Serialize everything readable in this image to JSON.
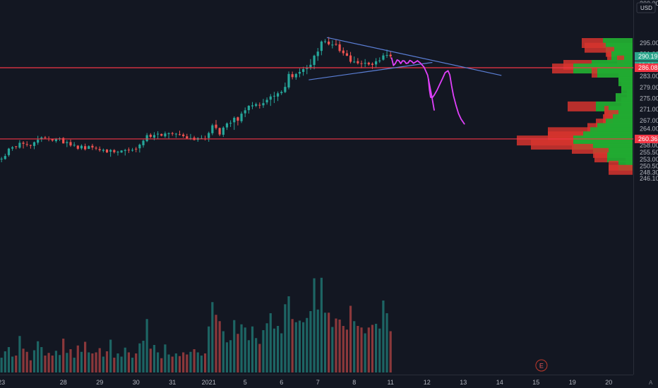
{
  "chart_data": {
    "type": "candlestick",
    "currency": "USD",
    "price_axis_ticks": [
      "295.00",
      "291.00",
      "287.00",
      "283.00",
      "279.00",
      "275.00",
      "271.00",
      "267.00",
      "264.00",
      "261.00",
      "258.00",
      "255.50",
      "253.00",
      "250.50",
      "248.30",
      "246.10"
    ],
    "price_axis_top_partial": "300.00",
    "date_axis_ticks": [
      {
        "label": "23",
        "bar": 1
      },
      {
        "label": "28",
        "bar": 18
      },
      {
        "label": "29",
        "bar": 28
      },
      {
        "label": "30",
        "bar": 38
      },
      {
        "label": "31",
        "bar": 48
      },
      {
        "label": "2021",
        "bar": 58
      },
      {
        "label": "5",
        "bar": 68
      },
      {
        "label": "6",
        "bar": 78
      },
      {
        "label": "7",
        "bar": 88
      },
      {
        "label": "8",
        "bar": 98
      },
      {
        "label": "11",
        "bar": 108
      },
      {
        "label": "12",
        "bar": 118
      },
      {
        "label": "13",
        "bar": 128
      },
      {
        "label": "14",
        "bar": 138
      },
      {
        "label": "15",
        "bar": 148
      },
      {
        "label": "19",
        "bar": 158
      },
      {
        "label": "20",
        "bar": 168
      }
    ],
    "price_labels": {
      "last_price": "290.19",
      "countdown": "08:06",
      "red_level_upper": "286.08",
      "red_level_lower": "260.36"
    },
    "horizontal_levels": [
      {
        "price": 286.08,
        "color": "#f23645"
      },
      {
        "price": 260.36,
        "color": "#f23645"
      }
    ],
    "trendlines": [
      {
        "from": {
          "bar": 90.5,
          "price": 297.0
        },
        "to": {
          "bar": 138.5,
          "price": 283.3
        },
        "color": "#5b7fd6"
      },
      {
        "from": {
          "bar": 85.5,
          "price": 281.7
        },
        "to": {
          "bar": 119.5,
          "price": 288.0
        },
        "color": "#5b7fd6"
      }
    ],
    "drawings": [
      {
        "color": "#e040fb",
        "points": [
          [
            108.3,
            289.6
          ],
          [
            108.8,
            286.9
          ],
          [
            109.3,
            287.6
          ],
          [
            109.8,
            288.9
          ],
          [
            110.3,
            288.6
          ],
          [
            110.8,
            287.6
          ],
          [
            111.3,
            288.6
          ],
          [
            111.8,
            288.5
          ],
          [
            112.3,
            287.6
          ],
          [
            112.8,
            287.8
          ],
          [
            113.3,
            288.7
          ],
          [
            113.8,
            288.4
          ],
          [
            114.3,
            287.7
          ],
          [
            114.8,
            288.1
          ],
          [
            115.4,
            288.6
          ],
          [
            116.2,
            287.8
          ],
          [
            117.2,
            286.3
          ],
          [
            118.2,
            283.4
          ],
          [
            119.3,
            276.0
          ],
          [
            120.0,
            270.8
          ]
        ]
      },
      {
        "color": "#e040fb",
        "points": [
          [
            118.4,
            282.0
          ],
          [
            118.7,
            278.0
          ],
          [
            119.0,
            275.4
          ],
          [
            119.5,
            275.3
          ],
          [
            120.0,
            276.2
          ],
          [
            120.8,
            278.0
          ],
          [
            121.5,
            280.0
          ],
          [
            122.3,
            282.2
          ],
          [
            123.0,
            284.3
          ],
          [
            123.8,
            285.0
          ],
          [
            124.3,
            283.5
          ],
          [
            124.8,
            279.5
          ],
          [
            125.3,
            276.0
          ],
          [
            126.0,
            272.5
          ],
          [
            126.7,
            269.5
          ],
          [
            127.4,
            267.5
          ],
          [
            128.3,
            265.8
          ]
        ]
      }
    ],
    "volume_profile": [
      {
        "price": 295.0,
        "down": 30,
        "up": 42
      },
      {
        "price": 293.3,
        "down": 30,
        "up": 38
      },
      {
        "price": 291.8,
        "down": 12,
        "up": 26
      },
      {
        "price": 290.2,
        "down": 6,
        "up": 30
      },
      {
        "price": 288.7,
        "down": 10,
        "up": 12
      },
      {
        "price": 287.1,
        "down": 40,
        "up": 58
      },
      {
        "price": 285.8,
        "down": 30,
        "up": 84
      },
      {
        "price": 284.3,
        "down": 8,
        "up": 50
      },
      {
        "price": 282.7,
        "down": 0,
        "up": 20
      },
      {
        "price": 281.2,
        "down": 0,
        "up": 20
      },
      {
        "price": 279.7,
        "down": 0,
        "up": 16
      },
      {
        "price": 278.2,
        "down": 0,
        "up": 16
      },
      {
        "price": 276.7,
        "down": 0,
        "up": 8
      },
      {
        "price": 275.1,
        "down": 0,
        "up": 24
      },
      {
        "price": 273.6,
        "down": 0,
        "up": 16
      },
      {
        "price": 272.1,
        "down": 40,
        "up": 52
      },
      {
        "price": 270.5,
        "down": 6,
        "up": 34
      },
      {
        "price": 269.0,
        "down": 20,
        "up": 20
      },
      {
        "price": 267.5,
        "down": 14,
        "up": 28
      },
      {
        "price": 265.9,
        "down": 14,
        "up": 38
      },
      {
        "price": 264.3,
        "down": 14,
        "up": 50
      },
      {
        "price": 262.8,
        "down": 60,
        "up": 60
      },
      {
        "price": 261.3,
        "down": 50,
        "up": 70
      },
      {
        "price": 259.8,
        "down": 80,
        "up": 84
      },
      {
        "price": 258.3,
        "down": 60,
        "up": 84
      },
      {
        "price": 256.8,
        "down": 30,
        "up": 56
      },
      {
        "price": 255.3,
        "down": 22,
        "up": 34
      },
      {
        "price": 253.7,
        "down": 18,
        "up": 36
      },
      {
        "price": 252.2,
        "down": 0,
        "up": 10
      },
      {
        "price": 250.7,
        "down": 14,
        "up": 20
      },
      {
        "price": 249.2,
        "down": 34,
        "up": 0
      }
    ],
    "event_marker": {
      "label": "E",
      "bar": 149.5
    },
    "candles": [
      [
        252.08,
        253.0,
        251.19,
        252.83
      ],
      [
        253.02,
        253.85,
        251.94,
        253.23
      ],
      [
        253.11,
        255.03,
        252.87,
        254.21
      ],
      [
        254.53,
        257.14,
        253.94,
        256.87
      ],
      [
        256.89,
        257.78,
        256.09,
        257.35
      ],
      [
        257.72,
        257.8,
        256.68,
        257.46
      ],
      [
        257.21,
        259.91,
        256.84,
        258.97
      ],
      [
        259.01,
        259.58,
        256.91,
        258.62
      ],
      [
        258.49,
        259.53,
        257.61,
        258.25
      ],
      [
        258.16,
        258.31,
        256.86,
        257.91
      ],
      [
        257.83,
        259.43,
        256.67,
        259.19
      ],
      [
        259.02,
        261.49,
        258.25,
        260.07
      ],
      [
        260.22,
        261.3,
        259.29,
        260.88
      ],
      [
        260.93,
        261.41,
        260.24,
        260.92
      ],
      [
        260.49,
        261.3,
        259.53,
        260.23
      ],
      [
        260.39,
        260.39,
        259.35,
        259.79
      ],
      [
        259.56,
        260.69,
        258.98,
        260.25
      ],
      [
        260.23,
        261.0,
        259.6,
        260.57
      ],
      [
        260.7,
        260.99,
        258.7,
        258.75
      ],
      [
        258.87,
        259.93,
        257.41,
        259.21
      ],
      [
        259.23,
        260.14,
        257.51,
        258.0
      ],
      [
        258.2,
        259.21,
        257.52,
        258.24
      ],
      [
        257.94,
        258.14,
        256.41,
        256.82
      ],
      [
        256.96,
        258.4,
        256.45,
        257.91
      ],
      [
        257.75,
        258.67,
        256.18,
        256.62
      ],
      [
        256.78,
        258.05,
        256.71,
        257.75
      ],
      [
        257.89,
        258.6,
        256.38,
        257.27
      ],
      [
        257.18,
        257.72,
        256.33,
        256.9
      ],
      [
        256.71,
        257.63,
        255.74,
        256.33
      ],
      [
        256.08,
        256.9,
        255.48,
        256.43
      ],
      [
        256.51,
        256.75,
        255.26,
        255.52
      ],
      [
        255.78,
        256.71,
        253.93,
        256.37
      ],
      [
        256.33,
        256.68,
        255.1,
        255.58
      ],
      [
        255.68,
        256.09,
        254.35,
        255.72
      ],
      [
        255.47,
        256.3,
        255.32,
        256.19
      ],
      [
        256.03,
        256.8,
        254.39,
        256.35
      ],
      [
        256.47,
        257.27,
        255.29,
        256.22
      ],
      [
        256.31,
        257.11,
        255.75,
        256.42
      ],
      [
        256.83,
        257.46,
        255.56,
        256.76
      ],
      [
        256.98,
        258.68,
        255.46,
        258.31
      ],
      [
        258.08,
        260.13,
        257.24,
        259.73
      ],
      [
        259.54,
        262.5,
        259.2,
        261.73
      ],
      [
        261.89,
        262.44,
        260.67,
        261.08
      ],
      [
        260.84,
        262.79,
        259.9,
        261.77
      ],
      [
        262.08,
        263.14,
        260.33,
        262.24
      ],
      [
        262.16,
        262.32,
        261.28,
        261.52
      ],
      [
        261.29,
        263.03,
        260.76,
        262.34
      ],
      [
        262.11,
        262.76,
        260.53,
        262.42
      ],
      [
        262.46,
        262.91,
        261.51,
        262.19
      ],
      [
        262.02,
        262.54,
        260.78,
        262.26
      ],
      [
        262.05,
        263.33,
        261.59,
        261.91
      ],
      [
        261.94,
        262.53,
        260.82,
        261.39
      ],
      [
        261.33,
        262.21,
        260.32,
        260.57
      ],
      [
        260.61,
        262.17,
        260.0,
        260.67
      ],
      [
        260.84,
        261.47,
        259.83,
        259.96
      ],
      [
        260.05,
        260.96,
        259.33,
        260.72
      ],
      [
        260.56,
        261.72,
        260.23,
        260.62
      ],
      [
        260.51,
        261.55,
        259.82,
        260.36
      ],
      [
        260.71,
        263.01,
        259.34,
        262.5
      ],
      [
        262.42,
        265.89,
        261.71,
        265.29
      ],
      [
        265.53,
        267.19,
        263.75,
        264.32
      ],
      [
        264.31,
        264.46,
        261.37,
        261.97
      ],
      [
        261.87,
        264.94,
        261.08,
        264.45
      ],
      [
        264.53,
        266.36,
        263.62,
        265.96
      ],
      [
        266.05,
        267.09,
        264.69,
        266.16
      ],
      [
        266.38,
        268.51,
        263.64,
        267.99
      ],
      [
        268.18,
        268.44,
        265.25,
        266.96
      ],
      [
        266.77,
        270.24,
        266.12,
        269.49
      ],
      [
        269.62,
        271.73,
        268.24,
        270.71
      ],
      [
        270.76,
        272.55,
        269.53,
        272.33
      ],
      [
        272.14,
        273.69,
        271.1,
        272.48
      ],
      [
        272.33,
        273.5,
        271.83,
        272.92
      ],
      [
        272.68,
        273.54,
        271.33,
        272.49
      ],
      [
        272.51,
        274.82,
        271.57,
        273.29
      ],
      [
        273.57,
        275.36,
        272.77,
        274.49
      ],
      [
        274.55,
        276.56,
        272.29,
        275.7
      ],
      [
        275.84,
        277.37,
        273.33,
        275.94
      ],
      [
        275.67,
        277.51,
        274.05,
        276.84
      ],
      [
        276.91,
        277.91,
        276.24,
        277.33
      ],
      [
        277.29,
        280.72,
        276.92,
        279.17
      ],
      [
        278.96,
        284.73,
        278.27,
        283.83
      ],
      [
        283.75,
        284.69,
        281.88,
        282.68
      ],
      [
        282.61,
        284.21,
        281.75,
        283.81
      ],
      [
        283.95,
        285.85,
        282.64,
        284.56
      ],
      [
        284.56,
        286.43,
        283.21,
        285.57
      ],
      [
        285.64,
        287.07,
        283.74,
        286.09
      ],
      [
        286.25,
        289.2,
        285.35,
        287.15
      ],
      [
        287.09,
        290.78,
        285.52,
        290.44
      ],
      [
        290.29,
        293.21,
        288.58,
        291.91
      ],
      [
        292.16,
        295.91,
        290.59,
        295.54
      ],
      [
        295.56,
        296.43,
        294.92,
        295.64
      ],
      [
        295.52,
        297.19,
        294.14,
        294.55
      ],
      [
        294.32,
        295.96,
        293.06,
        294.41
      ],
      [
        294.65,
        296.28,
        293.99,
        294.43
      ],
      [
        294.52,
        295.69,
        291.56,
        292.13
      ],
      [
        292.29,
        293.4,
        290.46,
        291.33
      ],
      [
        291.29,
        292.43,
        290.27,
        290.39
      ],
      [
        290.51,
        291.78,
        287.67,
        288.25
      ],
      [
        288.12,
        290.13,
        287.74,
        288.28
      ],
      [
        288.45,
        289.56,
        287.23,
        287.7
      ],
      [
        287.7,
        288.66,
        285.89,
        287.6
      ],
      [
        287.57,
        289.2,
        286.34,
        287.87
      ],
      [
        287.91,
        288.24,
        286.8,
        287.28
      ],
      [
        287.51,
        288.02,
        285.64,
        287.12
      ],
      [
        287.26,
        289.54,
        286.13,
        288.42
      ],
      [
        288.43,
        289.82,
        287.82,
        288.71
      ],
      [
        288.98,
        291.38,
        288.62,
        290.52
      ],
      [
        290.6,
        292.63,
        289.66,
        290.66
      ],
      [
        290.79,
        291.91,
        289.38,
        290.19
      ]
    ],
    "volumes": [
      3.8,
      2.8,
      4.0,
      4.8,
      3.0,
      3.2,
      6.9,
      4.5,
      3.9,
      2.3,
      4.2,
      5.9,
      4.8,
      3.2,
      3.7,
      3.2,
      4.1,
      3.3,
      6.4,
      3.7,
      4.4,
      2.8,
      5.1,
      3.9,
      5.8,
      3.8,
      3.6,
      3.8,
      4.6,
      3.0,
      4.0,
      6.2,
      2.8,
      3.6,
      3.0,
      4.7,
      3.8,
      2.8,
      3.6,
      5.5,
      6.0,
      10.1,
      4.5,
      5.2,
      3.8,
      2.7,
      5.3,
      3.4,
      3.0,
      3.6,
      3.1,
      3.8,
      3.4,
      3.9,
      4.4,
      3.8,
      3.2,
      3.6,
      8.7,
      13.3,
      10.9,
      9.7,
      7.8,
      5.7,
      6.1,
      9.9,
      7.3,
      9.1,
      8.5,
      6.1,
      8.7,
      6.5,
      5.4,
      8.0,
      9.3,
      11.2,
      8.3,
      8.8,
      7.4,
      12.9,
      14.4,
      10.1,
      9.5,
      9.8,
      9.5,
      10.3,
      11.6,
      17.8,
      11.9,
      17.9,
      11.3,
      11.3,
      8.6,
      10.2,
      10.0,
      8.8,
      8.1,
      12.6,
      9.7,
      8.8,
      8.5,
      7.4,
      8.5,
      9.0,
      9.2,
      8.3,
      13.6,
      11.2,
      7.8
    ]
  }
}
